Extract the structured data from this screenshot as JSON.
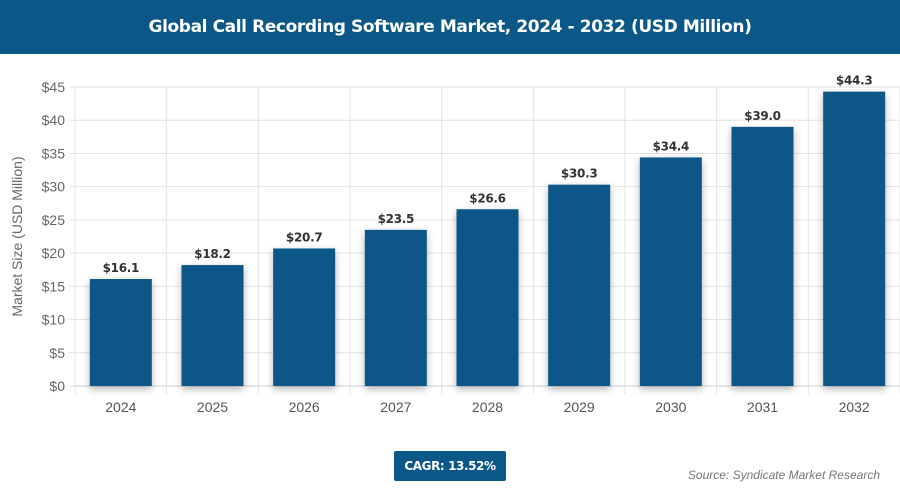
{
  "header": {
    "title": "Global Call Recording Software Market, 2024 - 2032 (USD Million)"
  },
  "chart_data": {
    "type": "bar",
    "title": "Global Call Recording Software Market, 2024 - 2032 (USD Million)",
    "categories": [
      "2024",
      "2025",
      "2026",
      "2027",
      "2028",
      "2029",
      "2030",
      "2031",
      "2032"
    ],
    "values": [
      16.1,
      18.2,
      20.7,
      23.5,
      26.6,
      30.3,
      34.4,
      39.0,
      44.3
    ],
    "data_labels": [
      "$16.1",
      "$18.2",
      "$20.7",
      "$23.5",
      "$26.6",
      "$30.3",
      "$34.4",
      "$39.0",
      "$44.3"
    ],
    "xlabel": "",
    "ylabel": "Market Size (USD Million)",
    "ylim": [
      0,
      45
    ],
    "yticks": [
      0,
      5,
      10,
      15,
      20,
      25,
      30,
      35,
      40,
      45
    ],
    "ytick_labels": [
      "$0",
      "$5",
      "$10",
      "$15",
      "$20",
      "$25",
      "$30",
      "$35",
      "$40",
      "$45"
    ],
    "grid": true,
    "bar_color": "#0b5788"
  },
  "footer": {
    "cagr": "CAGR: 13.52%",
    "source": "Source: Syndicate Market Research"
  }
}
